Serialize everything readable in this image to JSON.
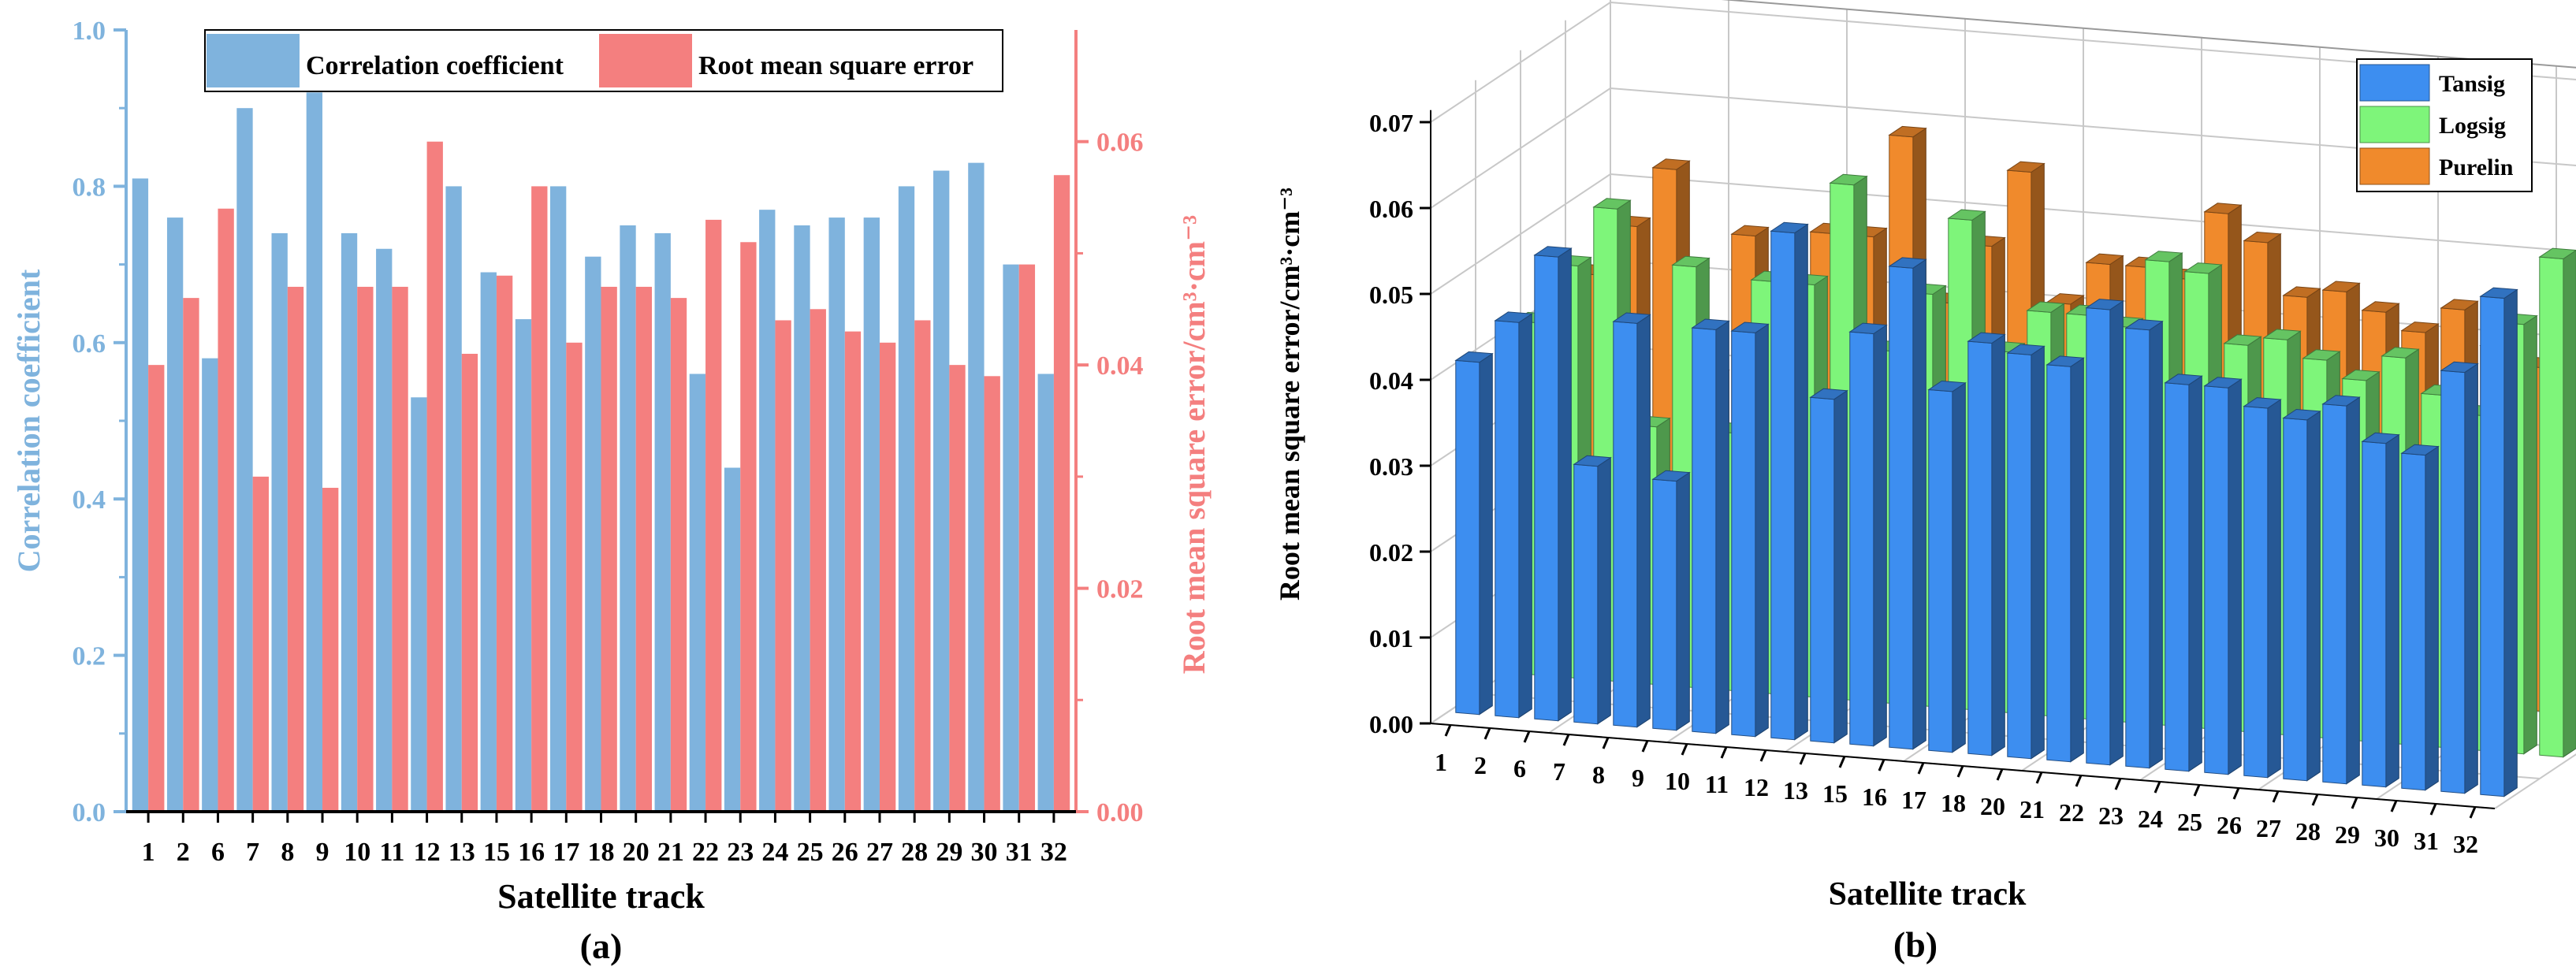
{
  "chart_data": [
    {
      "type": "bar",
      "panel_label": "(a)",
      "xlabel": "Satellite track",
      "ylabel_left": "Correlation coefficient",
      "ylabel_right": "Root mean square error/cm³·cm⁻³",
      "categories": [
        "1",
        "2",
        "6",
        "7",
        "8",
        "9",
        "10",
        "11",
        "12",
        "13",
        "15",
        "16",
        "17",
        "18",
        "20",
        "21",
        "22",
        "23",
        "24",
        "25",
        "26",
        "27",
        "28",
        "29",
        "30",
        "31",
        "32"
      ],
      "ylim_left": [
        0,
        1.0
      ],
      "ylim_right": [
        0,
        0.07
      ],
      "yticks_left": [
        "0.0",
        "0.2",
        "0.4",
        "0.6",
        "0.8",
        "1.0"
      ],
      "yticks_right": [
        "0.00",
        "0.02",
        "0.04",
        "0.06"
      ],
      "legend": [
        "Correlation coefficient",
        "Root mean square error"
      ],
      "series": [
        {
          "name": "Correlation coefficient",
          "axis": "left",
          "color": "#7fb3dd",
          "values": [
            0.81,
            0.76,
            0.58,
            0.9,
            0.74,
            0.92,
            0.74,
            0.72,
            0.53,
            0.8,
            0.69,
            0.63,
            0.8,
            0.71,
            0.75,
            0.74,
            0.56,
            0.44,
            0.77,
            0.75,
            0.76,
            0.76,
            0.8,
            0.82,
            0.83,
            0.7,
            0.56
          ]
        },
        {
          "name": "Root mean square error",
          "axis": "right",
          "color": "#f47f7f",
          "values": [
            0.04,
            0.046,
            0.054,
            0.03,
            0.047,
            0.029,
            0.047,
            0.047,
            0.06,
            0.041,
            0.048,
            0.056,
            0.042,
            0.047,
            0.047,
            0.046,
            0.053,
            0.051,
            0.044,
            0.045,
            0.043,
            0.042,
            0.044,
            0.04,
            0.039,
            0.049,
            0.057
          ]
        }
      ]
    },
    {
      "type": "bar3d",
      "panel_label": "(b)",
      "xlabel": "Satellite track",
      "ylabel": "Root mean square error/cm³·cm⁻³",
      "categories": [
        "1",
        "2",
        "6",
        "7",
        "8",
        "9",
        "10",
        "11",
        "12",
        "13",
        "15",
        "16",
        "17",
        "18",
        "20",
        "21",
        "22",
        "23",
        "24",
        "25",
        "26",
        "27",
        "28",
        "29",
        "30",
        "31",
        "32"
      ],
      "ylim": [
        0,
        0.07
      ],
      "yticks": [
        "0.00",
        "0.01",
        "0.02",
        "0.03",
        "0.04",
        "0.05",
        "0.06",
        "0.07"
      ],
      "legend": [
        "Tansig",
        "Logsig",
        "Purelin"
      ],
      "series": [
        {
          "name": "Tansig",
          "color": "#3d8ef0",
          "values": [
            0.041,
            0.046,
            0.054,
            0.03,
            0.047,
            0.029,
            0.047,
            0.047,
            0.059,
            0.04,
            0.048,
            0.056,
            0.042,
            0.048,
            0.047,
            0.046,
            0.053,
            0.051,
            0.045,
            0.045,
            0.043,
            0.042,
            0.044,
            0.04,
            0.039,
            0.049,
            0.058
          ]
        },
        {
          "name": "Logsig",
          "color": "#7ef57a",
          "values": [
            0.041,
            0.048,
            0.055,
            0.03,
            0.049,
            0.03,
            0.048,
            0.048,
            0.06,
            0.041,
            0.048,
            0.057,
            0.042,
            0.047,
            0.047,
            0.046,
            0.054,
            0.053,
            0.045,
            0.046,
            0.044,
            0.042,
            0.045,
            0.041,
            0.039,
            0.05,
            0.058
          ]
        },
        {
          "name": "Purelin",
          "color": "#f08a2c",
          "values": [
            0.042,
            0.048,
            0.055,
            0.031,
            0.048,
            0.031,
            0.049,
            0.049,
            0.061,
            0.042,
            0.049,
            0.058,
            0.043,
            0.048,
            0.048,
            0.047,
            0.055,
            0.052,
            0.046,
            0.047,
            0.045,
            0.043,
            0.046,
            0.042,
            0.04,
            0.051,
            0.059
          ]
        }
      ]
    }
  ]
}
